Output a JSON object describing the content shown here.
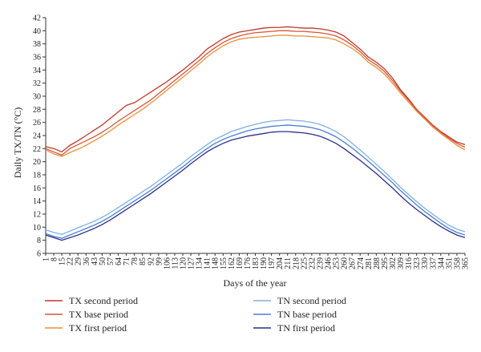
{
  "chart_data": {
    "type": "line",
    "xlabel": "Days of the year",
    "ylabel": "Daily TX/TN (°C)",
    "xlim": [
      1,
      365
    ],
    "ylim": [
      6,
      42
    ],
    "y_ticks": [
      6,
      8,
      10,
      12,
      14,
      16,
      18,
      20,
      22,
      24,
      26,
      28,
      30,
      32,
      34,
      36,
      38,
      40,
      42
    ],
    "x_ticks": [
      1,
      8,
      15,
      22,
      29,
      36,
      43,
      50,
      57,
      64,
      71,
      78,
      85,
      92,
      99,
      106,
      113,
      120,
      127,
      134,
      141,
      148,
      155,
      162,
      169,
      176,
      183,
      190,
      197,
      204,
      211,
      218,
      225,
      232,
      239,
      246,
      253,
      260,
      267,
      274,
      281,
      288,
      295,
      302,
      309,
      316,
      323,
      330,
      337,
      344,
      351,
      358,
      365
    ],
    "grid": false,
    "legend_position": "bottom",
    "series": [
      {
        "name": "TX second period",
        "color": "#c0392b",
        "x": [
          1,
          8,
          15,
          22,
          29,
          36,
          43,
          50,
          57,
          64,
          71,
          78,
          85,
          92,
          99,
          106,
          113,
          120,
          127,
          134,
          141,
          148,
          155,
          162,
          169,
          176,
          183,
          190,
          197,
          204,
          211,
          218,
          225,
          232,
          239,
          246,
          253,
          260,
          267,
          274,
          281,
          288,
          295,
          302,
          309,
          316,
          323,
          330,
          337,
          344,
          351,
          358,
          365
        ],
        "values": [
          22.3,
          22.0,
          21.5,
          22.5,
          23.2,
          24.0,
          24.8,
          25.6,
          26.6,
          27.6,
          28.6,
          29.0,
          29.8,
          30.6,
          31.4,
          32.2,
          33.1,
          34.0,
          35.0,
          36.0,
          37.2,
          38.0,
          38.8,
          39.4,
          39.8,
          40.0,
          40.2,
          40.4,
          40.5,
          40.5,
          40.6,
          40.5,
          40.4,
          40.4,
          40.3,
          40.1,
          39.8,
          39.2,
          38.2,
          37.2,
          36.0,
          35.2,
          34.2,
          32.8,
          31.0,
          29.6,
          28.0,
          26.8,
          25.6,
          24.6,
          23.8,
          23.0,
          22.6
        ]
      },
      {
        "name": "TX base period",
        "color": "#d5573b",
        "x": [
          1,
          8,
          15,
          22,
          29,
          36,
          43,
          50,
          57,
          64,
          71,
          78,
          85,
          92,
          99,
          106,
          113,
          120,
          127,
          134,
          141,
          148,
          155,
          162,
          169,
          176,
          183,
          190,
          197,
          204,
          211,
          218,
          225,
          232,
          239,
          246,
          253,
          260,
          267,
          274,
          281,
          288,
          295,
          302,
          309,
          316,
          323,
          330,
          337,
          344,
          351,
          358,
          365
        ],
        "values": [
          22.0,
          21.5,
          21.0,
          22.0,
          22.6,
          23.2,
          23.8,
          24.5,
          25.3,
          26.2,
          27.0,
          27.8,
          28.6,
          29.4,
          30.4,
          31.4,
          32.4,
          33.4,
          34.4,
          35.4,
          36.5,
          37.4,
          38.2,
          38.8,
          39.2,
          39.5,
          39.7,
          39.8,
          39.9,
          40.0,
          40.0,
          39.9,
          39.9,
          39.8,
          39.7,
          39.5,
          39.2,
          38.6,
          37.8,
          36.8,
          35.6,
          34.8,
          33.8,
          32.4,
          30.8,
          29.4,
          27.9,
          26.7,
          25.5,
          24.5,
          23.6,
          22.8,
          22.2
        ]
      },
      {
        "name": "TX first period",
        "color": "#e8913a",
        "x": [
          1,
          8,
          15,
          22,
          29,
          36,
          43,
          50,
          57,
          64,
          71,
          78,
          85,
          92,
          99,
          106,
          113,
          120,
          127,
          134,
          141,
          148,
          155,
          162,
          169,
          176,
          183,
          190,
          197,
          204,
          211,
          218,
          225,
          232,
          239,
          246,
          253,
          260,
          267,
          274,
          281,
          288,
          295,
          302,
          309,
          316,
          323,
          330,
          337,
          344,
          351,
          358,
          365
        ],
        "values": [
          21.8,
          21.2,
          20.8,
          21.4,
          21.9,
          22.5,
          23.2,
          23.9,
          24.7,
          25.6,
          26.4,
          27.2,
          28.0,
          28.9,
          29.9,
          30.9,
          31.9,
          32.9,
          33.9,
          34.9,
          36.0,
          36.9,
          37.7,
          38.3,
          38.7,
          38.9,
          39.0,
          39.1,
          39.2,
          39.3,
          39.3,
          39.2,
          39.2,
          39.1,
          39.0,
          38.9,
          38.6,
          38.0,
          37.3,
          36.4,
          35.2,
          34.4,
          33.4,
          32.0,
          30.5,
          29.1,
          27.7,
          26.5,
          25.3,
          24.3,
          23.4,
          22.5,
          21.8
        ]
      },
      {
        "name": "TN second period",
        "color": "#7fb0e0",
        "x": [
          1,
          8,
          15,
          22,
          29,
          36,
          43,
          50,
          57,
          64,
          71,
          78,
          85,
          92,
          99,
          106,
          113,
          120,
          127,
          134,
          141,
          148,
          155,
          162,
          169,
          176,
          183,
          190,
          197,
          204,
          211,
          218,
          225,
          232,
          239,
          246,
          253,
          260,
          267,
          274,
          281,
          288,
          295,
          302,
          309,
          316,
          323,
          330,
          337,
          344,
          351,
          358,
          365
        ],
        "values": [
          9.6,
          9.2,
          8.9,
          9.4,
          9.9,
          10.4,
          10.9,
          11.5,
          12.2,
          13.0,
          13.8,
          14.6,
          15.4,
          16.2,
          17.1,
          18.0,
          18.9,
          19.8,
          20.8,
          21.7,
          22.6,
          23.4,
          24.0,
          24.6,
          25.0,
          25.4,
          25.7,
          26.0,
          26.2,
          26.3,
          26.4,
          26.3,
          26.2,
          26.0,
          25.7,
          25.2,
          24.6,
          23.8,
          22.8,
          21.8,
          20.7,
          19.6,
          18.5,
          17.3,
          16.1,
          15.0,
          13.9,
          12.9,
          12.0,
          11.1,
          10.3,
          9.7,
          9.3
        ]
      },
      {
        "name": "TN base period",
        "color": "#4a7fd0",
        "x": [
          1,
          8,
          15,
          22,
          29,
          36,
          43,
          50,
          57,
          64,
          71,
          78,
          85,
          92,
          99,
          106,
          113,
          120,
          127,
          134,
          141,
          148,
          155,
          162,
          169,
          176,
          183,
          190,
          197,
          204,
          211,
          218,
          225,
          232,
          239,
          246,
          253,
          260,
          267,
          274,
          281,
          288,
          295,
          302,
          309,
          316,
          323,
          330,
          337,
          344,
          351,
          358,
          365
        ],
        "values": [
          9.0,
          8.6,
          8.3,
          8.8,
          9.3,
          9.8,
          10.3,
          10.9,
          11.6,
          12.4,
          13.2,
          14.0,
          14.8,
          15.6,
          16.5,
          17.4,
          18.3,
          19.2,
          20.2,
          21.1,
          22.0,
          22.8,
          23.4,
          23.9,
          24.3,
          24.7,
          25.0,
          25.2,
          25.4,
          25.5,
          25.6,
          25.5,
          25.4,
          25.2,
          24.9,
          24.4,
          23.8,
          23.0,
          22.1,
          21.1,
          20.1,
          19.0,
          17.9,
          16.8,
          15.6,
          14.5,
          13.4,
          12.4,
          11.5,
          10.6,
          9.8,
          9.2,
          8.8
        ]
      },
      {
        "name": "TN first period",
        "color": "#2b2f8a",
        "x": [
          1,
          8,
          15,
          22,
          29,
          36,
          43,
          50,
          57,
          64,
          71,
          78,
          85,
          92,
          99,
          106,
          113,
          120,
          127,
          134,
          141,
          148,
          155,
          162,
          169,
          176,
          183,
          190,
          197,
          204,
          211,
          218,
          225,
          232,
          239,
          246,
          253,
          260,
          267,
          274,
          281,
          288,
          295,
          302,
          309,
          316,
          323,
          330,
          337,
          344,
          351,
          358,
          365
        ],
        "values": [
          8.8,
          8.4,
          8.0,
          8.4,
          8.8,
          9.3,
          9.8,
          10.4,
          11.1,
          11.9,
          12.7,
          13.5,
          14.3,
          15.1,
          16.0,
          16.9,
          17.8,
          18.7,
          19.7,
          20.6,
          21.5,
          22.2,
          22.8,
          23.3,
          23.6,
          23.9,
          24.1,
          24.3,
          24.5,
          24.6,
          24.6,
          24.5,
          24.4,
          24.2,
          23.9,
          23.4,
          22.8,
          22.0,
          21.1,
          20.2,
          19.2,
          18.2,
          17.1,
          16.0,
          14.8,
          13.7,
          12.7,
          11.8,
          10.9,
          10.1,
          9.4,
          8.8,
          8.4
        ]
      }
    ]
  }
}
